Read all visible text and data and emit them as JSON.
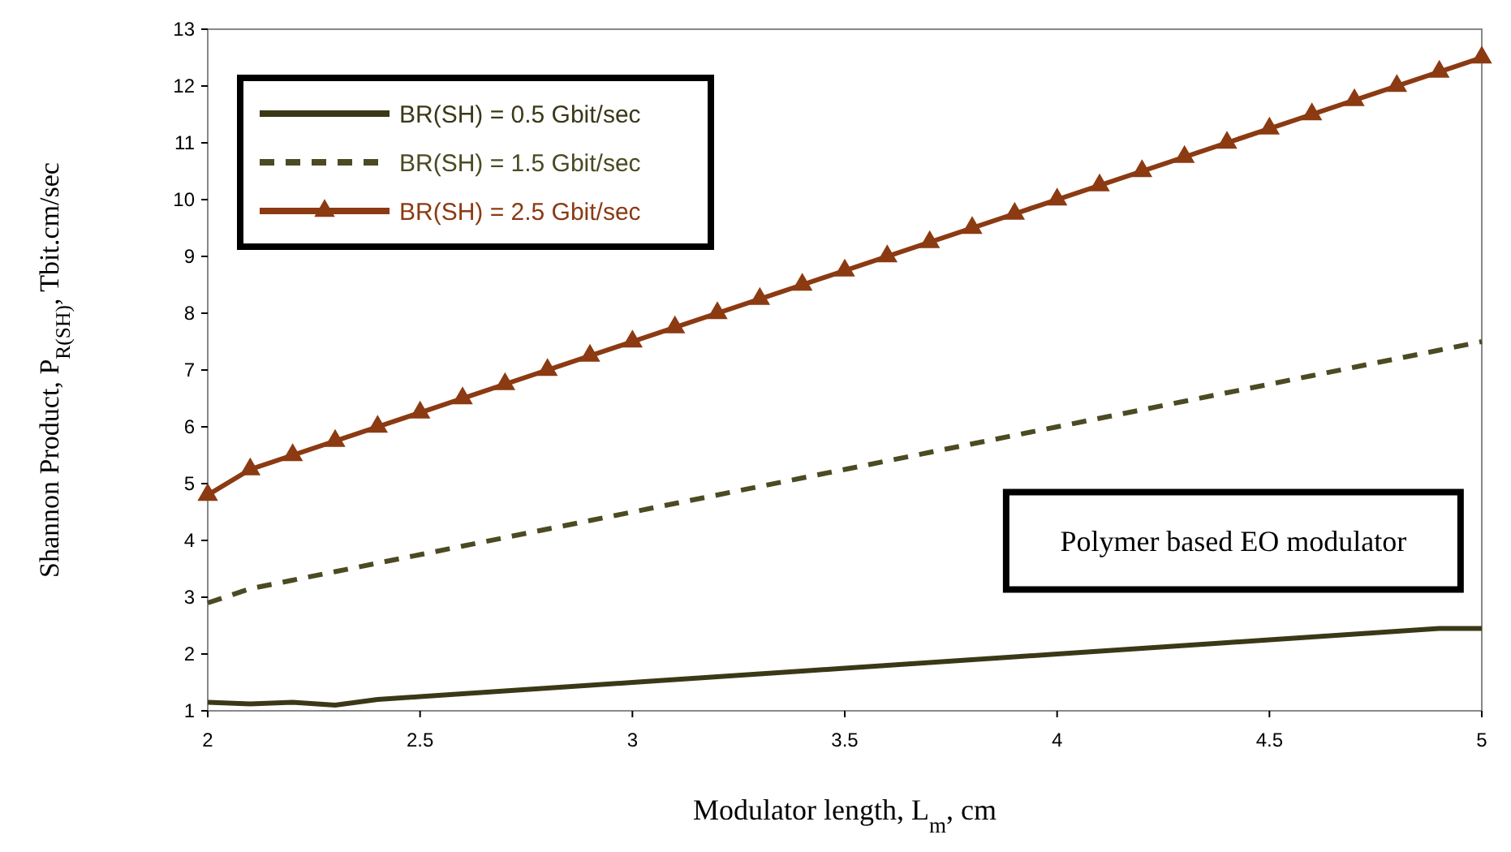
{
  "chart_data": {
    "type": "line",
    "xlabel": "Modulator length, L$_{m}$, cm",
    "ylabel": "Shannon Product, P$_{R(SH)}$, Tbit.cm/sec",
    "x": [
      2,
      2.1,
      2.2,
      2.3,
      2.4,
      2.5,
      2.6,
      2.7,
      2.8,
      2.9,
      3,
      3.1,
      3.2,
      3.3,
      3.4,
      3.5,
      3.6,
      3.7,
      3.8,
      3.9,
      4,
      4.1,
      4.2,
      4.3,
      4.4,
      4.5,
      4.6,
      4.7,
      4.8,
      4.9,
      5
    ],
    "series": [
      {
        "name": "BR(SH) = 0.5 Gbit/sec",
        "color": "#3b3818",
        "marker": "none",
        "line_style": "solid",
        "values": [
          1.15,
          1.12,
          1.15,
          1.1,
          1.2,
          1.25,
          1.3,
          1.35,
          1.4,
          1.45,
          1.5,
          1.55,
          1.6,
          1.65,
          1.7,
          1.75,
          1.8,
          1.85,
          1.9,
          1.95,
          2.0,
          2.05,
          2.1,
          2.15,
          2.2,
          2.25,
          2.3,
          2.35,
          2.4,
          2.45,
          2.45
        ]
      },
      {
        "name": "BR(SH) = 1.5 Gbit/sec",
        "color": "#4b4a22",
        "marker": "none",
        "line_style": "dashed",
        "values": [
          2.9,
          3.15,
          3.3,
          3.45,
          3.6,
          3.75,
          3.9,
          4.05,
          4.2,
          4.35,
          4.5,
          4.65,
          4.8,
          4.95,
          5.1,
          5.25,
          5.4,
          5.55,
          5.7,
          5.85,
          6.0,
          6.15,
          6.3,
          6.45,
          6.6,
          6.75,
          6.9,
          7.05,
          7.2,
          7.35,
          7.5
        ]
      },
      {
        "name": "BR(SH) = 2.5 Gbit/sec",
        "color": "#8b3a12",
        "marker": "triangle",
        "line_style": "solid",
        "values": [
          4.8,
          5.25,
          5.5,
          5.75,
          6.0,
          6.25,
          6.5,
          6.75,
          7.0,
          7.25,
          7.5,
          7.75,
          8.0,
          8.25,
          8.5,
          8.75,
          9.0,
          9.25,
          9.5,
          9.75,
          10.0,
          10.25,
          10.5,
          10.75,
          11.0,
          11.25,
          11.5,
          11.75,
          12.0,
          12.25,
          12.5
        ]
      }
    ],
    "xlim": [
      2,
      5
    ],
    "xticks": [
      2,
      2.5,
      3,
      3.5,
      4,
      4.5,
      5
    ],
    "ylim": [
      1,
      13
    ],
    "yticks": [
      1,
      2,
      3,
      4,
      5,
      6,
      7,
      8,
      9,
      10,
      11,
      12,
      13
    ],
    "grid": false,
    "legend": "top left",
    "annotations": [
      "Polymer based EO modulator"
    ]
  }
}
